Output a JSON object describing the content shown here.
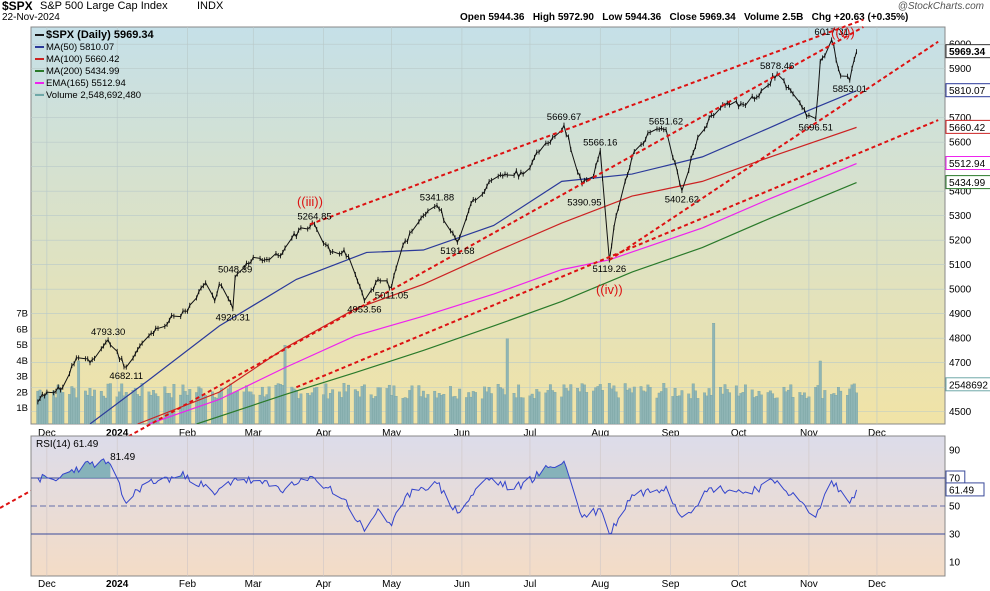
{
  "header": {
    "symbol": "$SPX",
    "name": "S&P 500 Large Cap Index",
    "exchange": "INDX",
    "date": "22-Nov-2024",
    "ohlc": "Open 5944.36   High 5972.90   Low 5944.36   Close 5969.34   Volume 2.5B   Chg +20.63 (+0.35%)",
    "brand": "@StockCharts.com"
  },
  "legend": [
    {
      "label": "$SPX (Daily) 5969.34",
      "color": "#1a1a1a"
    },
    {
      "label": "MA(50) 5810.07",
      "color": "#2b3a9a"
    },
    {
      "label": "MA(100) 5660.42",
      "color": "#cc2222"
    },
    {
      "label": "MA(200) 5434.99",
      "color": "#2a7a2a"
    },
    {
      "label": "EMA(165) 5512.94",
      "color": "#ee22ee"
    },
    {
      "label": "Volume 2,548,692,480",
      "color": "#6fa8a8"
    }
  ],
  "chart_data": [
    {
      "type": "line",
      "title": "$SPX (Daily)",
      "x_ticks": [
        "Dec",
        "2024",
        "Feb",
        "Mar",
        "Apr",
        "May",
        "Jun",
        "Jul",
        "Aug",
        "Sep",
        "Oct",
        "Nov",
        "Dec"
      ],
      "y_ticks": [
        4500,
        4600,
        4700,
        4800,
        4900,
        5000,
        5100,
        5200,
        5300,
        5400,
        5500,
        5600,
        5700,
        5800,
        5900,
        6000
      ],
      "ylim": [
        4450,
        6070
      ],
      "price_points": [
        {
          "d": "2023-11-27",
          "v": 4540
        },
        {
          "d": "2023-12-01",
          "v": 4580
        },
        {
          "d": "2023-12-08",
          "v": 4600
        },
        {
          "d": "2023-12-14",
          "v": 4720
        },
        {
          "d": "2023-12-20",
          "v": 4700
        },
        {
          "d": "2023-12-28",
          "v": 4793.3
        },
        {
          "d": "2024-01-05",
          "v": 4682.11
        },
        {
          "d": "2024-01-12",
          "v": 4780
        },
        {
          "d": "2024-01-19",
          "v": 4840
        },
        {
          "d": "2024-01-26",
          "v": 4890
        },
        {
          "d": "2024-02-01",
          "v": 4910
        },
        {
          "d": "2024-02-09",
          "v": 5026
        },
        {
          "d": "2024-02-13",
          "v": 4953
        },
        {
          "d": "2024-02-15",
          "v": 5020
        },
        {
          "d": "2024-02-21",
          "v": 4920.31
        },
        {
          "d": "2024-02-22",
          "v": 5048.39
        },
        {
          "d": "2024-03-01",
          "v": 5130
        },
        {
          "d": "2024-03-08",
          "v": 5120
        },
        {
          "d": "2024-03-14",
          "v": 5150
        },
        {
          "d": "2024-03-21",
          "v": 5241
        },
        {
          "d": "2024-03-28",
          "v": 5264.85
        },
        {
          "d": "2024-04-04",
          "v": 5150
        },
        {
          "d": "2024-04-10",
          "v": 5160
        },
        {
          "d": "2024-04-15",
          "v": 5060
        },
        {
          "d": "2024-04-19",
          "v": 4953.56
        },
        {
          "d": "2024-04-25",
          "v": 5040
        },
        {
          "d": "2024-05-01",
          "v": 5011.05
        },
        {
          "d": "2024-05-06",
          "v": 5180
        },
        {
          "d": "2024-05-15",
          "v": 5300
        },
        {
          "d": "2024-05-21",
          "v": 5341.88
        },
        {
          "d": "2024-05-30",
          "v": 5191.68
        },
        {
          "d": "2024-06-05",
          "v": 5350
        },
        {
          "d": "2024-06-12",
          "v": 5420
        },
        {
          "d": "2024-06-20",
          "v": 5470
        },
        {
          "d": "2024-06-28",
          "v": 5470
        },
        {
          "d": "2024-07-05",
          "v": 5560
        },
        {
          "d": "2024-07-16",
          "v": 5669.67
        },
        {
          "d": "2024-07-24",
          "v": 5430
        },
        {
          "d": "2024-07-29",
          "v": 5460
        },
        {
          "d": "2024-07-31",
          "v": 5530
        },
        {
          "d": "2024-08-01",
          "v": 5566.16
        },
        {
          "d": "2024-08-05",
          "v": 5119.26
        },
        {
          "d": "2024-08-08",
          "v": 5300
        },
        {
          "d": "2024-08-15",
          "v": 5540
        },
        {
          "d": "2024-08-23",
          "v": 5640
        },
        {
          "d": "2024-08-30",
          "v": 5651.62
        },
        {
          "d": "2024-09-06",
          "v": 5402.62
        },
        {
          "d": "2024-09-13",
          "v": 5620
        },
        {
          "d": "2024-09-19",
          "v": 5710
        },
        {
          "d": "2024-09-26",
          "v": 5760
        },
        {
          "d": "2024-10-04",
          "v": 5750
        },
        {
          "d": "2024-10-11",
          "v": 5810
        },
        {
          "d": "2024-10-18",
          "v": 5878.46
        },
        {
          "d": "2024-10-24",
          "v": 5810
        },
        {
          "d": "2024-10-31",
          "v": 5705
        },
        {
          "d": "2024-11-04",
          "v": 5696.51
        },
        {
          "d": "2024-11-06",
          "v": 5930
        },
        {
          "d": "2024-11-11",
          "v": 6017.31
        },
        {
          "d": "2024-11-15",
          "v": 5870
        },
        {
          "d": "2024-11-19",
          "v": 5853.01
        },
        {
          "d": "2024-11-22",
          "v": 5969.34
        }
      ],
      "price_labels": [
        {
          "text": "4793.30",
          "d": "2023-12-28",
          "v": 4793.3,
          "pos": "above"
        },
        {
          "text": "4682.11",
          "d": "2024-01-05",
          "v": 4682.11,
          "pos": "below"
        },
        {
          "text": "5048.39",
          "d": "2024-02-22",
          "v": 5048.39,
          "pos": "above"
        },
        {
          "text": "4920.31",
          "d": "2024-02-21",
          "v": 4920.31,
          "pos": "below"
        },
        {
          "text": "5264.85",
          "d": "2024-03-28",
          "v": 5264.85,
          "pos": "above"
        },
        {
          "text": "4953.56",
          "d": "2024-04-19",
          "v": 4953.56,
          "pos": "below"
        },
        {
          "text": "5011.05",
          "d": "2024-05-01",
          "v": 5011.05,
          "pos": "below"
        },
        {
          "text": "5341.88",
          "d": "2024-05-21",
          "v": 5341.88,
          "pos": "above"
        },
        {
          "text": "5191.68",
          "d": "2024-05-30",
          "v": 5191.68,
          "pos": "below"
        },
        {
          "text": "5669.67",
          "d": "2024-07-16",
          "v": 5669.67,
          "pos": "above"
        },
        {
          "text": "5390.95",
          "d": "2024-07-25",
          "v": 5390.95,
          "pos": "below"
        },
        {
          "text": "5566.16",
          "d": "2024-08-01",
          "v": 5566.16,
          "pos": "above"
        },
        {
          "text": "5119.26",
          "d": "2024-08-05",
          "v": 5119.26,
          "pos": "below"
        },
        {
          "text": "5651.62",
          "d": "2024-08-30",
          "v": 5651.62,
          "pos": "above"
        },
        {
          "text": "5402.62",
          "d": "2024-09-06",
          "v": 5402.62,
          "pos": "below"
        },
        {
          "text": "5878.46",
          "d": "2024-10-18",
          "v": 5878.46,
          "pos": "above"
        },
        {
          "text": "5696.51",
          "d": "2024-11-04",
          "v": 5696.51,
          "pos": "below"
        },
        {
          "text": "6017.31",
          "d": "2024-11-11",
          "v": 6017.31,
          "pos": "above"
        },
        {
          "text": "5853.01",
          "d": "2024-11-19",
          "v": 5853.01,
          "pos": "below"
        }
      ],
      "wave_labels": [
        {
          "text": "((iii))",
          "d": "2024-03-26",
          "v": 5340
        },
        {
          "text": "((iv))",
          "d": "2024-08-05",
          "v": 4980
        },
        {
          "text": "((v))",
          "d": "2024-11-16",
          "v": 6030
        }
      ],
      "moving_averages": [
        {
          "name": "MA(50)",
          "color": "#2b3a9a",
          "points": [
            {
              "d": "2023-12-20",
              "v": 4450
            },
            {
              "d": "2024-01-15",
              "v": 4630
            },
            {
              "d": "2024-02-15",
              "v": 4850
            },
            {
              "d": "2024-03-20",
              "v": 5040
            },
            {
              "d": "2024-04-20",
              "v": 5150
            },
            {
              "d": "2024-05-15",
              "v": 5160
            },
            {
              "d": "2024-06-15",
              "v": 5260
            },
            {
              "d": "2024-07-15",
              "v": 5440
            },
            {
              "d": "2024-08-15",
              "v": 5470
            },
            {
              "d": "2024-09-15",
              "v": 5540
            },
            {
              "d": "2024-10-15",
              "v": 5660
            },
            {
              "d": "2024-11-01",
              "v": 5730
            },
            {
              "d": "2024-11-22",
              "v": 5810.07
            }
          ]
        },
        {
          "name": "MA(100)",
          "color": "#cc2222",
          "points": [
            {
              "d": "2024-01-10",
              "v": 4450
            },
            {
              "d": "2024-02-15",
              "v": 4580
            },
            {
              "d": "2024-03-15",
              "v": 4760
            },
            {
              "d": "2024-04-15",
              "v": 4920
            },
            {
              "d": "2024-05-15",
              "v": 5020
            },
            {
              "d": "2024-06-15",
              "v": 5150
            },
            {
              "d": "2024-07-15",
              "v": 5270
            },
            {
              "d": "2024-08-15",
              "v": 5380
            },
            {
              "d": "2024-09-15",
              "v": 5440
            },
            {
              "d": "2024-10-15",
              "v": 5540
            },
            {
              "d": "2024-11-22",
              "v": 5660.42
            }
          ]
        },
        {
          "name": "EMA(165)",
          "color": "#ee22ee",
          "points": [
            {
              "d": "2024-01-15",
              "v": 4450
            },
            {
              "d": "2024-02-15",
              "v": 4550
            },
            {
              "d": "2024-03-15",
              "v": 4680
            },
            {
              "d": "2024-04-15",
              "v": 4810
            },
            {
              "d": "2024-05-15",
              "v": 4890
            },
            {
              "d": "2024-06-15",
              "v": 4980
            },
            {
              "d": "2024-07-15",
              "v": 5080
            },
            {
              "d": "2024-08-05",
              "v": 5120
            },
            {
              "d": "2024-09-15",
              "v": 5250
            },
            {
              "d": "2024-10-15",
              "v": 5370
            },
            {
              "d": "2024-11-22",
              "v": 5512.94
            }
          ]
        },
        {
          "name": "MA(200)",
          "color": "#2a7a2a",
          "points": [
            {
              "d": "2024-02-05",
              "v": 4450
            },
            {
              "d": "2024-03-15",
              "v": 4570
            },
            {
              "d": "2024-04-15",
              "v": 4660
            },
            {
              "d": "2024-05-15",
              "v": 4750
            },
            {
              "d": "2024-06-15",
              "v": 4850
            },
            {
              "d": "2024-07-15",
              "v": 4950
            },
            {
              "d": "2024-08-15",
              "v": 5070
            },
            {
              "d": "2024-09-15",
              "v": 5170
            },
            {
              "d": "2024-10-15",
              "v": 5290
            },
            {
              "d": "2024-11-22",
              "v": 5434.99
            }
          ]
        }
      ],
      "trendlines": [
        {
          "color": "#dd1111",
          "style": "dashed",
          "from": {
            "d": "2024-03-26",
            "v": 5264.85
          },
          "to": {
            "d": "2024-11-25",
            "v": 6100
          }
        },
        {
          "color": "#dd1111",
          "style": "dashed",
          "from": {
            "d": "2024-08-05",
            "v": 5119.26
          },
          "to": {
            "d": "2024-12-28",
            "v": 6010
          }
        },
        {
          "color": "#dd1111",
          "style": "dashed",
          "from": {
            "d": "2024-03-20",
            "v": 4600
          },
          "to": {
            "d": "2024-12-28",
            "v": 5690
          }
        }
      ],
      "right_axis_badges": [
        {
          "text": "5969.34",
          "v": 5969.34,
          "fill": "#ffffff",
          "stroke": "#333333",
          "bold": true
        },
        {
          "text": "5810.07",
          "v": 5810.07,
          "fill": "#ffffff",
          "stroke": "#2b3a9a"
        },
        {
          "text": "5660.42",
          "v": 5660.42,
          "fill": "#ffffff",
          "stroke": "#cc2222"
        },
        {
          "text": "5512.94",
          "v": 5512.94,
          "fill": "#ffffff",
          "stroke": "#ee22ee"
        },
        {
          "text": "5434.99",
          "v": 5434.99,
          "fill": "#ffffff",
          "stroke": "#2a7a2a"
        },
        {
          "text": "2548692",
          "v": 4610,
          "fill": "#ffffff",
          "stroke": "#6fa8a8"
        }
      ]
    },
    {
      "type": "bar",
      "title": "Volume",
      "y_ticks": [
        "1B",
        "2B",
        "3B",
        "4B",
        "5B",
        "6B",
        "7B"
      ],
      "y_tick_values": [
        1,
        2,
        3,
        4,
        5,
        6,
        7
      ],
      "unit": "billions",
      "ylim": [
        0,
        8.5
      ],
      "spikes": [
        {
          "d": "2023-12-15",
          "v": 4.0
        },
        {
          "d": "2024-03-15",
          "v": 5.0
        },
        {
          "d": "2024-06-21",
          "v": 5.4
        },
        {
          "d": "2024-09-20",
          "v": 6.4
        },
        {
          "d": "2024-11-06",
          "v": 4.0
        }
      ]
    },
    {
      "type": "line",
      "title": "RSI(14) 61.49",
      "y_ticks": [
        10,
        30,
        50,
        70,
        90
      ],
      "ylim": [
        0,
        100
      ],
      "ref_lines": [
        30,
        50,
        70
      ],
      "overbought_level": 70,
      "points": [
        {
          "d": "2023-11-27",
          "v": 70
        },
        {
          "d": "2023-12-05",
          "v": 68
        },
        {
          "d": "2023-12-12",
          "v": 76
        },
        {
          "d": "2023-12-20",
          "v": 80
        },
        {
          "d": "2023-12-28",
          "v": 81.49
        },
        {
          "d": "2024-01-05",
          "v": 52
        },
        {
          "d": "2024-01-12",
          "v": 65
        },
        {
          "d": "2024-01-19",
          "v": 68
        },
        {
          "d": "2024-02-01",
          "v": 72
        },
        {
          "d": "2024-02-13",
          "v": 58
        },
        {
          "d": "2024-02-22",
          "v": 70
        },
        {
          "d": "2024-03-05",
          "v": 66
        },
        {
          "d": "2024-03-15",
          "v": 62
        },
        {
          "d": "2024-03-28",
          "v": 70
        },
        {
          "d": "2024-04-10",
          "v": 55
        },
        {
          "d": "2024-04-19",
          "v": 32
        },
        {
          "d": "2024-04-25",
          "v": 48
        },
        {
          "d": "2024-05-01",
          "v": 36
        },
        {
          "d": "2024-05-10",
          "v": 62
        },
        {
          "d": "2024-05-21",
          "v": 66
        },
        {
          "d": "2024-05-30",
          "v": 45
        },
        {
          "d": "2024-06-12",
          "v": 70
        },
        {
          "d": "2024-06-24",
          "v": 62
        },
        {
          "d": "2024-07-10",
          "v": 78
        },
        {
          "d": "2024-07-16",
          "v": 82
        },
        {
          "d": "2024-07-24",
          "v": 42
        },
        {
          "d": "2024-08-01",
          "v": 48
        },
        {
          "d": "2024-08-05",
          "v": 30
        },
        {
          "d": "2024-08-15",
          "v": 58
        },
        {
          "d": "2024-08-30",
          "v": 64
        },
        {
          "d": "2024-09-06",
          "v": 42
        },
        {
          "d": "2024-09-19",
          "v": 63
        },
        {
          "d": "2024-10-04",
          "v": 60
        },
        {
          "d": "2024-10-18",
          "v": 68
        },
        {
          "d": "2024-10-31",
          "v": 48
        },
        {
          "d": "2024-11-04",
          "v": 42
        },
        {
          "d": "2024-11-11",
          "v": 68
        },
        {
          "d": "2024-11-19",
          "v": 52
        },
        {
          "d": "2024-11-22",
          "v": 61.49
        }
      ],
      "peak_label": {
        "text": "81.49",
        "d": "2023-12-28",
        "v": 81.49
      },
      "right_badges": [
        {
          "text": "70",
          "v": 70
        },
        {
          "text": "61.49",
          "v": 61.49
        }
      ]
    }
  ],
  "x_axis": {
    "labels": [
      {
        "text": "Dec",
        "d": "2023-12-01"
      },
      {
        "text": "2024",
        "d": "2024-01-01",
        "bold": true
      },
      {
        "text": "Feb",
        "d": "2024-02-01"
      },
      {
        "text": "Mar",
        "d": "2024-03-01"
      },
      {
        "text": "Apr",
        "d": "2024-04-01"
      },
      {
        "text": "May",
        "d": "2024-05-01"
      },
      {
        "text": "Jun",
        "d": "2024-06-01"
      },
      {
        "text": "Jul",
        "d": "2024-07-01"
      },
      {
        "text": "Aug",
        "d": "2024-08-01"
      },
      {
        "text": "Sep",
        "d": "2024-09-01"
      },
      {
        "text": "Oct",
        "d": "2024-10-01"
      },
      {
        "text": "Nov",
        "d": "2024-11-01"
      },
      {
        "text": "Dec",
        "d": "2024-12-01"
      }
    ]
  },
  "colors": {
    "panel_top": "#c5e0e8",
    "panel_bottom": "#f1e3a6",
    "rsi_fill_top": "#ddd9e8",
    "rsi_fill_bottom": "#f4dcc6",
    "price": "#111111",
    "volume": "#8fb5b5",
    "rsi": "#3344cc",
    "rsi_overbought_fill": "#6fa8b0",
    "trendline": "#dd1111",
    "wave_label": "#dd1111"
  }
}
